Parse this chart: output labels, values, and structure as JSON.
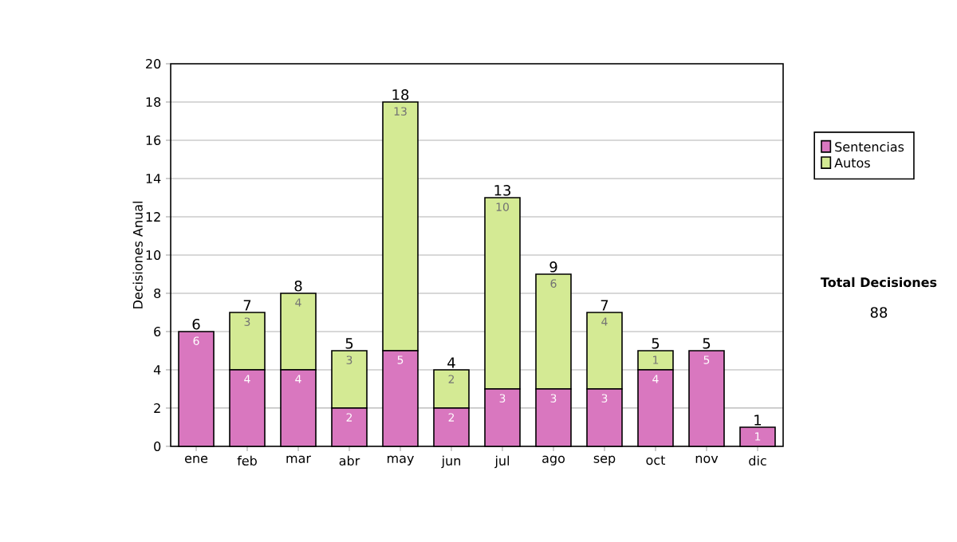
{
  "chart_data": {
    "type": "bar",
    "stacked": true,
    "ylabel": "Decisiones Anual",
    "categories": [
      "ene",
      "feb",
      "mar",
      "abr",
      "may",
      "jun",
      "jul",
      "ago",
      "sep",
      "oct",
      "nov",
      "dic"
    ],
    "series": [
      {
        "name": "Sentencias",
        "color": "#d977bf",
        "values": [
          6,
          4,
          4,
          2,
          5,
          2,
          3,
          3,
          3,
          4,
          5,
          1
        ],
        "value_labels": [
          "6",
          "4",
          "4",
          "2",
          "5",
          "2",
          "3",
          "3",
          "3",
          "4",
          "5",
          "1"
        ]
      },
      {
        "name": "Autos",
        "color": "#d4ea94",
        "values": [
          0,
          3,
          4,
          3,
          13,
          2,
          10,
          6,
          4,
          1,
          0,
          0
        ],
        "value_labels": [
          null,
          "3",
          "4",
          "3",
          "13",
          "2",
          "10",
          "6",
          "4",
          "1",
          null,
          null
        ]
      }
    ],
    "totals": [
      "6",
      "7",
      "8",
      "5",
      "18",
      "4",
      "13",
      "9",
      "7",
      "5",
      "5",
      "1"
    ],
    "ylim": [
      0,
      20
    ],
    "yticks": [
      0,
      2,
      4,
      6,
      8,
      10,
      12,
      14,
      16,
      18,
      20
    ],
    "grid": "y",
    "legend": "right",
    "annotations": [
      "Total Decisiones",
      "88"
    ]
  }
}
